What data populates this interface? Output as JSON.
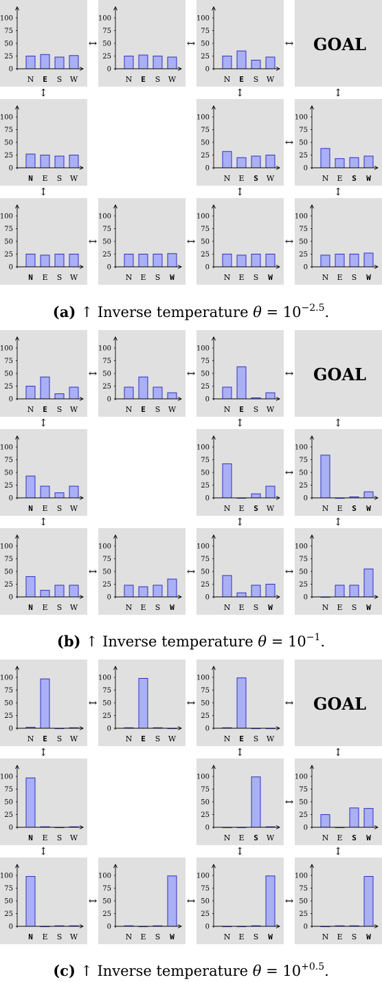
{
  "chart_data": [
    {
      "type": "bar",
      "panel_label": "(a)",
      "caption": {
        "label": "(a)",
        "text": "↑ Inverse temperature",
        "symbol": "θ",
        "equals": "= 10",
        "exponent": "−2.5",
        "end": "."
      },
      "categories": [
        "N",
        "E",
        "S",
        "W"
      ],
      "ylim": [
        0,
        100
      ],
      "yticks": [
        "0",
        "25",
        "50",
        "75",
        "100"
      ],
      "goal_label": "GOAL",
      "cells": [
        {
          "row": 0,
          "col": 0,
          "values": [
            25,
            28,
            23,
            26
          ],
          "bold": "E"
        },
        {
          "row": 0,
          "col": 1,
          "values": [
            25,
            27,
            25,
            23
          ],
          "bold": "E"
        },
        {
          "row": 0,
          "col": 2,
          "values": [
            25,
            35,
            17,
            23
          ],
          "bold": "E"
        },
        {
          "row": 0,
          "col": 3,
          "goal": true
        },
        {
          "row": 1,
          "col": 0,
          "values": [
            27,
            25,
            23,
            25
          ],
          "bold": "N"
        },
        {
          "row": 1,
          "col": 2,
          "values": [
            32,
            20,
            23,
            25
          ],
          "bold": "S"
        },
        {
          "row": 1,
          "col": 3,
          "values": [
            38,
            18,
            20,
            23
          ],
          "bold": "SW"
        },
        {
          "row": 2,
          "col": 0,
          "values": [
            25,
            23,
            25,
            25
          ],
          "bold": "N"
        },
        {
          "row": 2,
          "col": 1,
          "values": [
            25,
            25,
            25,
            26
          ],
          "bold": "W"
        },
        {
          "row": 2,
          "col": 2,
          "values": [
            25,
            23,
            25,
            25
          ],
          "bold": "W"
        },
        {
          "row": 2,
          "col": 3,
          "values": [
            23,
            25,
            25,
            27
          ],
          "bold": "W"
        }
      ],
      "connectors": {
        "horizontal": [
          [
            0,
            0
          ],
          [
            0,
            1
          ],
          [
            0,
            2
          ],
          [
            1,
            2
          ],
          [
            2,
            0
          ],
          [
            2,
            1
          ],
          [
            2,
            2
          ]
        ],
        "vertical": [
          [
            0,
            0
          ],
          [
            1,
            0
          ],
          [
            0,
            2
          ],
          [
            1,
            2
          ],
          [
            0,
            3
          ],
          [
            1,
            3
          ]
        ],
        "symbol_h": "↔",
        "symbol_v": "↕"
      }
    },
    {
      "type": "bar",
      "panel_label": "(b)",
      "caption": {
        "label": "(b)",
        "text": "↑ Inverse temperature",
        "symbol": "θ",
        "equals": "= 10",
        "exponent": "−1",
        "end": "."
      },
      "categories": [
        "N",
        "E",
        "S",
        "W"
      ],
      "ylim": [
        0,
        100
      ],
      "yticks": [
        "0",
        "25",
        "50",
        "75",
        "100"
      ],
      "goal_label": "GOAL",
      "cells": [
        {
          "row": 0,
          "col": 0,
          "values": [
            25,
            43,
            10,
            23
          ],
          "bold": "E"
        },
        {
          "row": 0,
          "col": 1,
          "values": [
            23,
            43,
            23,
            12
          ],
          "bold": "E"
        },
        {
          "row": 0,
          "col": 2,
          "values": [
            23,
            63,
            2,
            12
          ],
          "bold": "E"
        },
        {
          "row": 0,
          "col": 3,
          "goal": true
        },
        {
          "row": 1,
          "col": 0,
          "values": [
            43,
            23,
            10,
            23
          ],
          "bold": "N"
        },
        {
          "row": 1,
          "col": 2,
          "values": [
            67,
            0,
            8,
            23
          ],
          "bold": "S"
        },
        {
          "row": 1,
          "col": 3,
          "values": [
            84,
            0,
            2,
            12
          ],
          "bold": "SW"
        },
        {
          "row": 2,
          "col": 0,
          "values": [
            40,
            13,
            23,
            23
          ],
          "bold": "N"
        },
        {
          "row": 2,
          "col": 1,
          "values": [
            23,
            20,
            23,
            35
          ],
          "bold": "W"
        },
        {
          "row": 2,
          "col": 2,
          "values": [
            42,
            8,
            23,
            25
          ],
          "bold": "W"
        },
        {
          "row": 2,
          "col": 3,
          "values": [
            0,
            23,
            23,
            55
          ],
          "bold": "W"
        }
      ],
      "connectors": {
        "horizontal": [
          [
            0,
            0
          ],
          [
            0,
            1
          ],
          [
            0,
            2
          ],
          [
            1,
            2
          ],
          [
            2,
            0
          ],
          [
            2,
            1
          ],
          [
            2,
            2
          ]
        ],
        "vertical": [
          [
            0,
            0
          ],
          [
            1,
            0
          ],
          [
            0,
            2
          ],
          [
            1,
            2
          ],
          [
            0,
            3
          ],
          [
            1,
            3
          ]
        ],
        "symbol_h": "↔",
        "symbol_v": "↕"
      }
    },
    {
      "type": "bar",
      "panel_label": "(c)",
      "caption": {
        "label": "(c)",
        "text": "↑ Inverse temperature",
        "symbol": "θ",
        "equals": "= 10",
        "exponent": "+0.5",
        "end": "."
      },
      "categories": [
        "N",
        "E",
        "S",
        "W"
      ],
      "ylim": [
        0,
        100
      ],
      "yticks": [
        "0",
        "25",
        "50",
        "75",
        "100"
      ],
      "goal_label": "GOAL",
      "cells": [
        {
          "row": 0,
          "col": 0,
          "values": [
            2,
            97,
            0,
            1
          ],
          "bold": "E"
        },
        {
          "row": 0,
          "col": 1,
          "values": [
            1,
            98,
            1,
            0
          ],
          "bold": "E"
        },
        {
          "row": 0,
          "col": 2,
          "values": [
            1,
            99,
            0,
            0
          ],
          "bold": "E"
        },
        {
          "row": 0,
          "col": 3,
          "goal": true
        },
        {
          "row": 1,
          "col": 0,
          "values": [
            97,
            1,
            0,
            1
          ],
          "bold": "N"
        },
        {
          "row": 1,
          "col": 2,
          "values": [
            0,
            0,
            99,
            1
          ],
          "bold": "S"
        },
        {
          "row": 1,
          "col": 3,
          "values": [
            25,
            0,
            38,
            37
          ],
          "bold": "SW"
        },
        {
          "row": 2,
          "col": 0,
          "values": [
            98,
            0,
            1,
            1
          ],
          "bold": "N"
        },
        {
          "row": 2,
          "col": 1,
          "values": [
            1,
            0,
            1,
            99
          ],
          "bold": "W"
        },
        {
          "row": 2,
          "col": 2,
          "values": [
            0,
            0,
            1,
            99
          ],
          "bold": "W"
        },
        {
          "row": 2,
          "col": 3,
          "values": [
            0,
            1,
            1,
            98
          ],
          "bold": "W"
        }
      ],
      "connectors": {
        "horizontal": [
          [
            0,
            0
          ],
          [
            0,
            1
          ],
          [
            0,
            2
          ],
          [
            1,
            2
          ],
          [
            2,
            0
          ],
          [
            2,
            1
          ],
          [
            2,
            2
          ]
        ],
        "vertical": [
          [
            0,
            0
          ],
          [
            1,
            0
          ],
          [
            0,
            2
          ],
          [
            1,
            2
          ],
          [
            0,
            3
          ],
          [
            1,
            3
          ]
        ],
        "symbol_h": "↔",
        "symbol_v": "↕"
      }
    }
  ]
}
